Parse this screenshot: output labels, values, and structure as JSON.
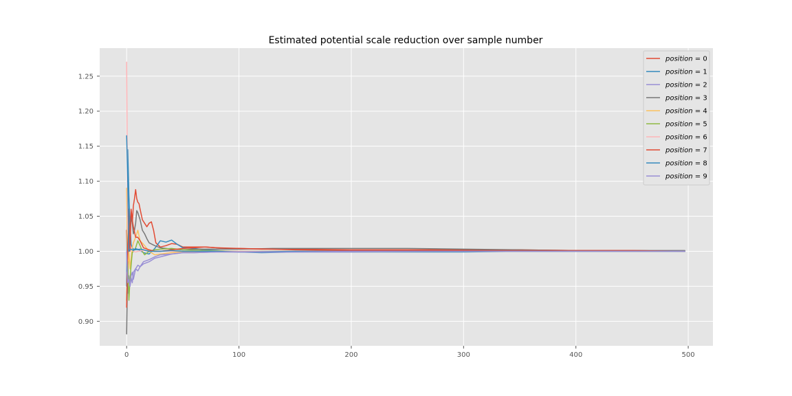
{
  "chart_data": {
    "type": "line",
    "title": "Estimated potential scale reduction over sample number",
    "xlabel": "",
    "ylabel": "",
    "xlim": [
      -24,
      522
    ],
    "ylim": [
      0.865,
      1.29
    ],
    "xticks": [
      0,
      100,
      200,
      300,
      400,
      500
    ],
    "xtick_labels": [
      "0",
      "100",
      "200",
      "300",
      "400",
      "500"
    ],
    "yticks": [
      0.9,
      0.95,
      1.0,
      1.05,
      1.1,
      1.15,
      1.2,
      1.25
    ],
    "ytick_labels": [
      "0.90",
      "0.95",
      "1.00",
      "1.05",
      "1.10",
      "1.15",
      "1.20",
      "1.25"
    ],
    "grid": true,
    "legend_position": "top-right",
    "colors": {
      "axes_background": "#e5e5e5",
      "grid": "#ffffff"
    },
    "series": [
      {
        "name": "position = 0",
        "legend_name": "position",
        "legend_value": "0",
        "color": "#e24a33",
        "x": [
          0,
          1,
          2,
          3,
          4,
          5,
          6,
          7,
          8,
          9,
          10,
          11,
          12,
          14,
          16,
          18,
          20,
          22,
          24,
          26,
          30,
          35,
          40,
          45,
          50,
          60,
          70,
          80,
          90,
          100,
          120,
          150,
          200,
          250,
          300,
          350,
          400,
          450,
          497
        ],
        "y": [
          1.03,
          0.945,
          1.06,
          1.02,
          1.055,
          1.04,
          1.065,
          1.075,
          1.088,
          1.075,
          1.07,
          1.068,
          1.06,
          1.045,
          1.04,
          1.035,
          1.04,
          1.042,
          1.03,
          1.012,
          1.006,
          1.008,
          1.011,
          1.01,
          1.006,
          1.006,
          1.006,
          1.005,
          1.004,
          1.004,
          1.003,
          1.003,
          1.002,
          1.002,
          1.002,
          1.002,
          1.001,
          1.001,
          1.0
        ]
      },
      {
        "name": "position = 1",
        "legend_name": "position",
        "legend_value": "1",
        "color": "#348abd",
        "x": [
          0,
          1,
          2,
          3,
          4,
          5,
          6,
          8,
          10,
          12,
          15,
          20,
          25,
          30,
          35,
          40,
          45,
          50,
          60,
          70,
          80,
          90,
          100,
          120,
          150,
          200,
          250,
          300,
          350,
          400,
          450,
          497
        ],
        "y": [
          0.95,
          1.145,
          1.08,
          1.04,
          1.01,
          1.005,
          1.003,
          1.002,
          1.003,
          1.001,
          0.998,
          0.996,
          1.004,
          1.015,
          1.013,
          1.016,
          1.01,
          1.005,
          1.004,
          1.002,
          1.001,
          1.0,
          0.999,
          0.998,
          0.999,
          0.999,
          0.999,
          0.999,
          1.0,
          1.0,
          1.0,
          1.0
        ]
      },
      {
        "name": "position = 2",
        "legend_name": "position",
        "legend_value": "2",
        "color": "#988ed5",
        "x": [
          0,
          1,
          2,
          3,
          4,
          5,
          6,
          8,
          10,
          12,
          15,
          20,
          25,
          30,
          40,
          50,
          60,
          80,
          100,
          150,
          200,
          300,
          400,
          497
        ],
        "y": [
          0.97,
          0.94,
          0.965,
          0.95,
          0.962,
          0.955,
          0.97,
          0.975,
          0.972,
          0.978,
          0.982,
          0.985,
          0.99,
          0.992,
          0.996,
          0.998,
          0.998,
          0.999,
          0.999,
          0.999,
          0.999,
          1.0,
          1.0,
          1.0
        ]
      },
      {
        "name": "position = 3",
        "legend_name": "position",
        "legend_value": "3",
        "color": "#777777",
        "x": [
          0,
          1,
          2,
          3,
          4,
          5,
          6,
          7,
          8,
          9,
          10,
          12,
          14,
          16,
          18,
          20,
          25,
          30,
          40,
          50,
          60,
          80,
          100,
          130,
          150,
          200,
          250,
          300,
          350,
          400,
          450,
          497
        ],
        "y": [
          0.882,
          0.99,
          1.01,
          1.035,
          1.05,
          1.04,
          1.025,
          1.03,
          1.04,
          1.058,
          1.055,
          1.045,
          1.03,
          1.025,
          1.018,
          1.012,
          1.008,
          1.005,
          1.003,
          1.002,
          1.003,
          1.003,
          1.003,
          1.004,
          1.004,
          1.004,
          1.004,
          1.003,
          1.002,
          1.001,
          1.001,
          1.001
        ]
      },
      {
        "name": "position = 4",
        "legend_name": "position",
        "legend_value": "4",
        "color": "#fbc15e",
        "x": [
          0,
          1,
          2,
          3,
          4,
          5,
          6,
          8,
          10,
          12,
          15,
          20,
          25,
          30,
          40,
          50,
          70,
          100,
          200,
          300,
          400,
          497
        ],
        "y": [
          1.09,
          0.96,
          1.0,
          0.975,
          0.99,
          1.005,
          1.012,
          1.02,
          1.03,
          1.015,
          1.01,
          1.0,
          0.995,
          0.996,
          0.998,
          0.999,
          1.0,
          1.0,
          1.0,
          1.0,
          1.0,
          1.0
        ]
      },
      {
        "name": "position = 5",
        "legend_name": "position",
        "legend_value": "5",
        "color": "#8eba42",
        "x": [
          0,
          1,
          2,
          3,
          4,
          5,
          6,
          8,
          10,
          12,
          14,
          16,
          20,
          25,
          30,
          40,
          50,
          70,
          100,
          200,
          300,
          400,
          497
        ],
        "y": [
          0.93,
          0.985,
          0.93,
          0.96,
          0.98,
          0.998,
          1.0,
          1.005,
          1.015,
          1.008,
          1.0,
          0.995,
          1.0,
          1.002,
          1.003,
          1.004,
          1.002,
          1.001,
          1.0,
          1.0,
          1.0,
          1.0,
          1.0
        ]
      },
      {
        "name": "position = 6",
        "legend_name": "position",
        "legend_value": "6",
        "color": "#ffb5b8",
        "x": [
          0,
          1,
          2,
          3,
          4,
          5,
          6,
          8,
          10,
          15,
          20,
          30,
          40,
          60,
          100,
          200,
          300,
          400,
          497
        ],
        "y": [
          1.27,
          1.03,
          1.0,
          1.01,
          1.005,
          1.002,
          1.0,
          0.999,
          1.0,
          1.001,
          1.0,
          1.0,
          1.0,
          1.0,
          1.0,
          1.0,
          1.0,
          1.0,
          1.0
        ]
      },
      {
        "name": "position = 7",
        "legend_name": "position",
        "legend_value": "7",
        "color": "#e24a33",
        "x": [
          0,
          1,
          2,
          3,
          4,
          5,
          6,
          8,
          10,
          12,
          15,
          20,
          25,
          30,
          40,
          50,
          60,
          70,
          80,
          100,
          130,
          150,
          200,
          250,
          300,
          350,
          400,
          450,
          497
        ],
        "y": [
          0.92,
          1.01,
          1.04,
          1.0,
          1.06,
          1.045,
          1.035,
          1.02,
          1.02,
          1.015,
          1.005,
          1.002,
          1.0,
          1.0,
          1.002,
          1.004,
          1.005,
          1.006,
          1.005,
          1.004,
          1.003,
          1.002,
          1.001,
          1.001,
          1.001,
          1.001,
          1.001,
          1.001,
          1.0
        ]
      },
      {
        "name": "position = 8",
        "legend_name": "position",
        "legend_value": "8",
        "color": "#348abd",
        "x": [
          0,
          1,
          2,
          3,
          4,
          5,
          6,
          8,
          10,
          12,
          15,
          20,
          30,
          40,
          50,
          60,
          80,
          100,
          150,
          200,
          300,
          400,
          497
        ],
        "y": [
          1.165,
          1.1,
          1.0,
          1.002,
          1.003,
          1.002,
          1.001,
          1.004,
          1.002,
          1.003,
          1.002,
          1.0,
          1.0,
          1.001,
          1.0,
          1.0,
          1.0,
          0.999,
          1.0,
          1.0,
          1.0,
          1.0,
          1.0
        ]
      },
      {
        "name": "position = 9",
        "legend_name": "position",
        "legend_value": "9",
        "color": "#988ed5",
        "x": [
          0,
          1,
          2,
          3,
          4,
          5,
          6,
          8,
          10,
          12,
          15,
          20,
          25,
          30,
          40,
          50,
          60,
          80,
          100,
          150,
          200,
          300,
          400,
          497
        ],
        "y": [
          1.0,
          0.955,
          0.96,
          0.95,
          0.965,
          0.97,
          0.96,
          0.975,
          0.98,
          0.978,
          0.985,
          0.988,
          0.992,
          0.995,
          0.996,
          0.998,
          0.998,
          0.999,
          0.999,
          0.999,
          1.0,
          1.0,
          1.0,
          1.0
        ]
      }
    ]
  }
}
